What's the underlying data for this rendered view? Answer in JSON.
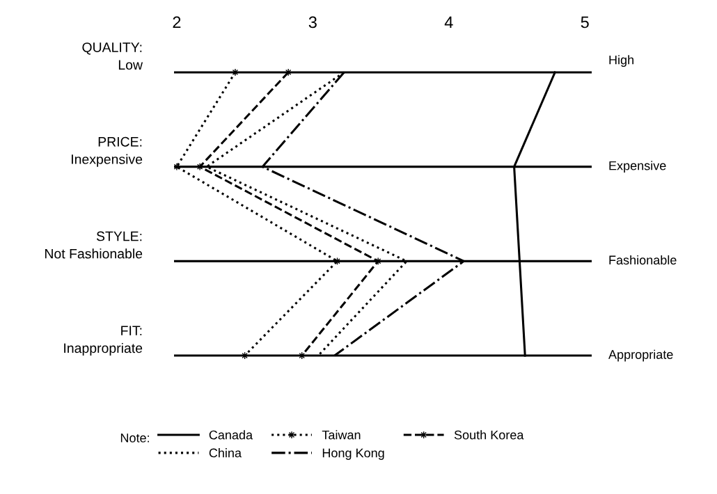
{
  "chart_data": {
    "type": "line",
    "orientation": "horizontal",
    "categories": [
      "QUALITY:\nLow",
      "PRICE:\nInexpensive",
      "STYLE:\nNot Fashionable",
      "FIT:\nInappropriate"
    ],
    "y2_categories": [
      "High",
      "Expensive",
      "Fashionable",
      "Appropriate"
    ],
    "xlim": [
      1.98,
      5.05
    ],
    "xticks": [
      2,
      3,
      4,
      5
    ],
    "grid": "y",
    "legend": "bottom",
    "legend_title": "Note:",
    "series": [
      {
        "name": "Canada",
        "color": "#000000",
        "line_style": "solid",
        "marker": "none",
        "values": [
          4.78,
          4.48,
          4.52,
          4.56
        ]
      },
      {
        "name": "China",
        "color": "#000000",
        "line_style": "dotted",
        "marker": "none",
        "values": [
          3.23,
          2.22,
          3.69,
          3.04
        ]
      },
      {
        "name": "Taiwan",
        "color": "#000000",
        "line_style": "dotted",
        "marker": "star",
        "values": [
          2.43,
          2.0,
          3.18,
          2.5
        ]
      },
      {
        "name": "Hong Kong",
        "color": "#000000",
        "line_style": "dashdot",
        "marker": "none",
        "values": [
          3.23,
          2.63,
          4.11,
          3.16
        ]
      },
      {
        "name": "South Korea",
        "color": "#000000",
        "line_style": "dashed",
        "marker": "star",
        "values": [
          2.82,
          2.17,
          3.48,
          2.92
        ]
      }
    ]
  }
}
